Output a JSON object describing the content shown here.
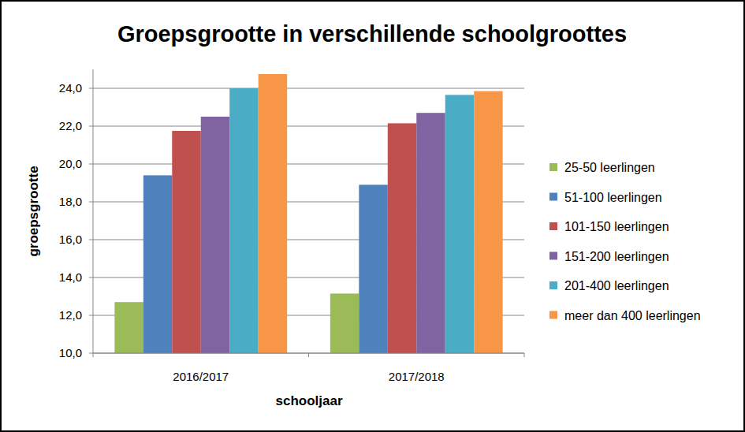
{
  "chart_data": {
    "type": "bar",
    "title": "Groepsgrootte in verschillende schoolgroottes",
    "x_label": "schooljaar",
    "y_label": "groepsgrootte",
    "categories": [
      "2016/2017",
      "2017/2018"
    ],
    "series": [
      {
        "name": "25-50 leerlingen",
        "color": "#9bbb59",
        "values": [
          12.7,
          13.15
        ]
      },
      {
        "name": "51-100 leerlingen",
        "color": "#4f81bd",
        "values": [
          19.4,
          18.9
        ]
      },
      {
        "name": "101-150 leerlingen",
        "color": "#c0504d",
        "values": [
          21.75,
          22.15
        ]
      },
      {
        "name": "151-200 leerlingen",
        "color": "#8064a2",
        "values": [
          22.5,
          22.7
        ]
      },
      {
        "name": "201-400 leerlingen",
        "color": "#4bacc6",
        "values": [
          24.0,
          23.65
        ]
      },
      {
        "name": "meer dan 400 leerlingen",
        "color": "#f79646",
        "values": [
          24.75,
          23.85
        ]
      }
    ],
    "ylim": [
      10,
      25
    ],
    "yticks": [
      {
        "value": 10,
        "label": "10,0"
      },
      {
        "value": 12,
        "label": "12,0"
      },
      {
        "value": 14,
        "label": "14,0"
      },
      {
        "value": 16,
        "label": "16,0"
      },
      {
        "value": 18,
        "label": "18,0"
      },
      {
        "value": 20,
        "label": "20,0"
      },
      {
        "value": 22,
        "label": "22,0"
      },
      {
        "value": 24,
        "label": "24,0"
      }
    ],
    "grid": true,
    "legend": "right"
  }
}
